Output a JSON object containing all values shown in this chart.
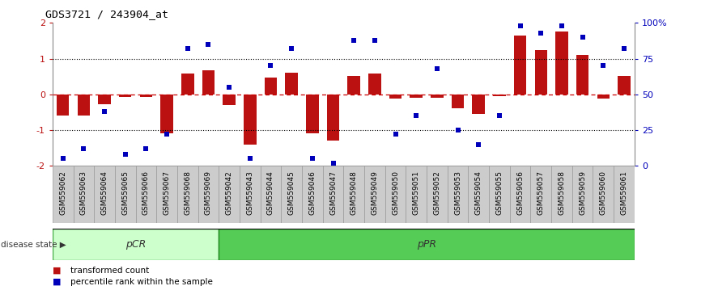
{
  "title": "GDS3721 / 243904_at",
  "categories": [
    "GSM559062",
    "GSM559063",
    "GSM559064",
    "GSM559065",
    "GSM559066",
    "GSM559067",
    "GSM559068",
    "GSM559069",
    "GSM559042",
    "GSM559043",
    "GSM559044",
    "GSM559045",
    "GSM559046",
    "GSM559047",
    "GSM559048",
    "GSM559049",
    "GSM559050",
    "GSM559051",
    "GSM559052",
    "GSM559053",
    "GSM559054",
    "GSM559055",
    "GSM559056",
    "GSM559057",
    "GSM559058",
    "GSM559059",
    "GSM559060",
    "GSM559061"
  ],
  "bar_values": [
    -0.6,
    -0.6,
    -0.28,
    -0.08,
    -0.08,
    -1.08,
    0.58,
    0.68,
    -0.3,
    -1.4,
    0.48,
    0.6,
    -1.08,
    -1.3,
    0.52,
    0.58,
    -0.12,
    -0.1,
    -0.1,
    -0.38,
    -0.55,
    -0.05,
    1.65,
    1.25,
    1.75,
    1.1,
    -0.12,
    0.52
  ],
  "percentile_values": [
    5,
    12,
    38,
    8,
    12,
    22,
    82,
    85,
    55,
    5,
    70,
    82,
    5,
    2,
    88,
    88,
    22,
    35,
    68,
    25,
    15,
    35,
    98,
    93,
    98,
    90,
    70,
    82
  ],
  "pcr_count": 8,
  "ppr_count": 20,
  "ylim": [
    -2,
    2
  ],
  "y2lim": [
    0,
    100
  ],
  "yticks": [
    -2,
    -1,
    0,
    1,
    2
  ],
  "y2ticks": [
    0,
    25,
    50,
    75,
    100
  ],
  "bar_color": "#bb1111",
  "dot_color": "#0000bb",
  "pcr_facecolor": "#ccffcc",
  "ppr_facecolor": "#55cc55",
  "pcr_edgecolor": "#44aa44",
  "ppr_edgecolor": "#228822",
  "background_color": "#ffffff",
  "hline_color": "#cc0000",
  "dotted_color": "#000000",
  "xticklabel_bg": "#dddddd"
}
